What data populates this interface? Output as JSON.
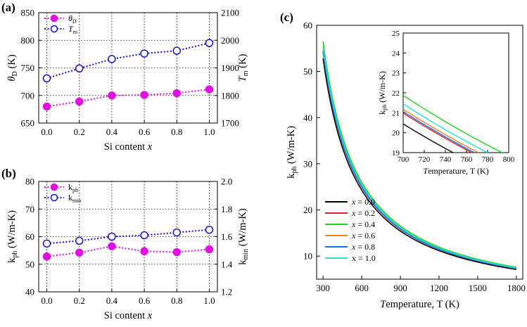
{
  "chart_data": [
    {
      "panel": "(a)",
      "type": "scatter",
      "x": [
        0.0,
        0.2,
        0.4,
        0.6,
        0.8,
        1.0
      ],
      "xticks": [
        "0.0",
        "0.2",
        "0.4",
        "0.6",
        "0.8",
        "1.0"
      ],
      "xlabel": "Si content",
      "xlabel_var": "x",
      "xlim": [
        -0.05,
        1.05
      ],
      "ylim": [
        650,
        850
      ],
      "yticks": [
        "650",
        "700",
        "750",
        "800",
        "850"
      ],
      "ylabel": "θD (K)",
      "y2lim": [
        1700,
        2100
      ],
      "y2ticks": [
        "1700",
        "1800",
        "1900",
        "2000",
        "2100"
      ],
      "y2label": "Tm (K)",
      "series": [
        {
          "name": "θD",
          "axis": "left",
          "marker": "filled",
          "color": "#e010e0",
          "values": [
            680,
            689,
            700,
            701,
            704,
            711
          ]
        },
        {
          "name": "Tm",
          "axis": "right",
          "marker": "open",
          "color": "#1414c8",
          "values": [
            1862,
            1898,
            1932,
            1952,
            1962,
            1990
          ]
        }
      ]
    },
    {
      "panel": "(b)",
      "type": "scatter",
      "x": [
        0.0,
        0.2,
        0.4,
        0.6,
        0.8,
        1.0
      ],
      "xticks": [
        "0.0",
        "0.2",
        "0.4",
        "0.6",
        "0.8",
        "1.0"
      ],
      "xlabel": "Si content",
      "xlabel_var": "x",
      "xlim": [
        -0.05,
        1.05
      ],
      "ylim": [
        40,
        80
      ],
      "yticks": [
        "40",
        "50",
        "60",
        "70",
        "80"
      ],
      "ylabel": "kph (W/m-K)",
      "y2lim": [
        1.2,
        2.0
      ],
      "y2ticks": [
        "1.2",
        "1.4",
        "1.6",
        "1.8",
        "2.0"
      ],
      "y2label": "kmin (W/m-K)",
      "series": [
        {
          "name": "kph",
          "axis": "left",
          "marker": "filled",
          "color": "#e010e0",
          "values": [
            52.8,
            54.2,
            56.5,
            54.7,
            54.4,
            55.4
          ]
        },
        {
          "name": "kmin",
          "axis": "right",
          "marker": "open",
          "color": "#1414c8",
          "values": [
            1.55,
            1.57,
            1.6,
            1.61,
            1.63,
            1.65
          ]
        }
      ]
    },
    {
      "panel": "(c)",
      "type": "line",
      "xlabel": "Temperature, T (K)",
      "ylabel": "kph (W/m-K)",
      "xlim": [
        250,
        1850
      ],
      "ylim": [
        5,
        60
      ],
      "xticks": [
        "300",
        "600",
        "900",
        "1200",
        "1500",
        "1800"
      ],
      "yticks": [
        "10",
        "20",
        "30",
        "40",
        "50",
        "60"
      ],
      "x_start": 300,
      "x_end": 1800,
      "legend": "bottom-left",
      "series": [
        {
          "name": "x = 0.0",
          "color": "#000000",
          "k300": 52.8
        },
        {
          "name": "x = 0.2",
          "color": "#e02020",
          "k300": 54.2
        },
        {
          "name": "x = 0.4",
          "color": "#20d020",
          "k300": 56.5
        },
        {
          "name": "x = 0.6",
          "color": "#f08020",
          "k300": 54.7
        },
        {
          "name": "x = 0.8",
          "color": "#1e6fe0",
          "k300": 54.4
        },
        {
          "name": "x = 1.0",
          "color": "#20e0e0",
          "k300": 55.4
        }
      ],
      "inset": {
        "xlabel": "Temperature, T (K)",
        "ylabel": "kph (W/m-K)",
        "xlim": [
          700,
          800
        ],
        "ylim": [
          19,
          25
        ],
        "xticks": [
          "700",
          "720",
          "740",
          "760",
          "780",
          "800"
        ],
        "yticks": [
          "19",
          "20",
          "21",
          "22",
          "23",
          "24",
          "25"
        ]
      }
    }
  ]
}
